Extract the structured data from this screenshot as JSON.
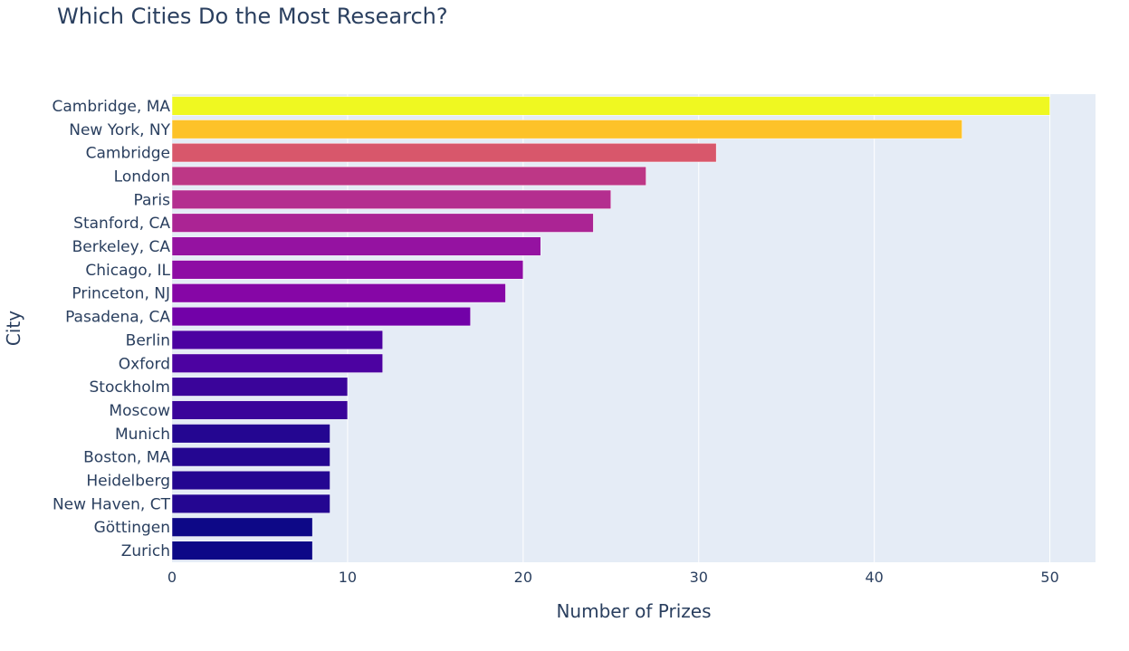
{
  "chart_data": {
    "type": "bar",
    "orientation": "horizontal",
    "title": "Which Cities Do the Most Research?",
    "xlabel": "Number of Prizes",
    "ylabel": "City",
    "xlim": [
      0,
      52.6
    ],
    "xticks": [
      0,
      10,
      20,
      30,
      40,
      50
    ],
    "grid": true,
    "categories": [
      "Cambridge, MA",
      "New York, NY",
      "Cambridge",
      "London",
      "Paris",
      "Stanford, CA",
      "Berkeley, CA",
      "Chicago, IL",
      "Princeton, NJ",
      "Pasadena, CA",
      "Berlin",
      "Oxford",
      "Stockholm",
      "Moscow",
      "Munich",
      "Boston, MA",
      "Heidelberg",
      "New Haven, CT",
      "Göttingen",
      "Zurich"
    ],
    "values": [
      50,
      45,
      31,
      27,
      25,
      24,
      21,
      20,
      19,
      17,
      12,
      12,
      10,
      10,
      9,
      9,
      9,
      9,
      8,
      8
    ],
    "colors": [
      "#eff821",
      "#fdc229",
      "#d8576b",
      "#bd3786",
      "#b42e8f",
      "#ab2494",
      "#9512a1",
      "#8e0ca4",
      "#8606a6",
      "#7201a8",
      "#4c02a1",
      "#4c02a1",
      "#3a049a",
      "#3a049a",
      "#240691",
      "#240691",
      "#240691",
      "#240691",
      "#0d0887",
      "#0d0887"
    ],
    "plot_background": "#e5ecf6"
  }
}
